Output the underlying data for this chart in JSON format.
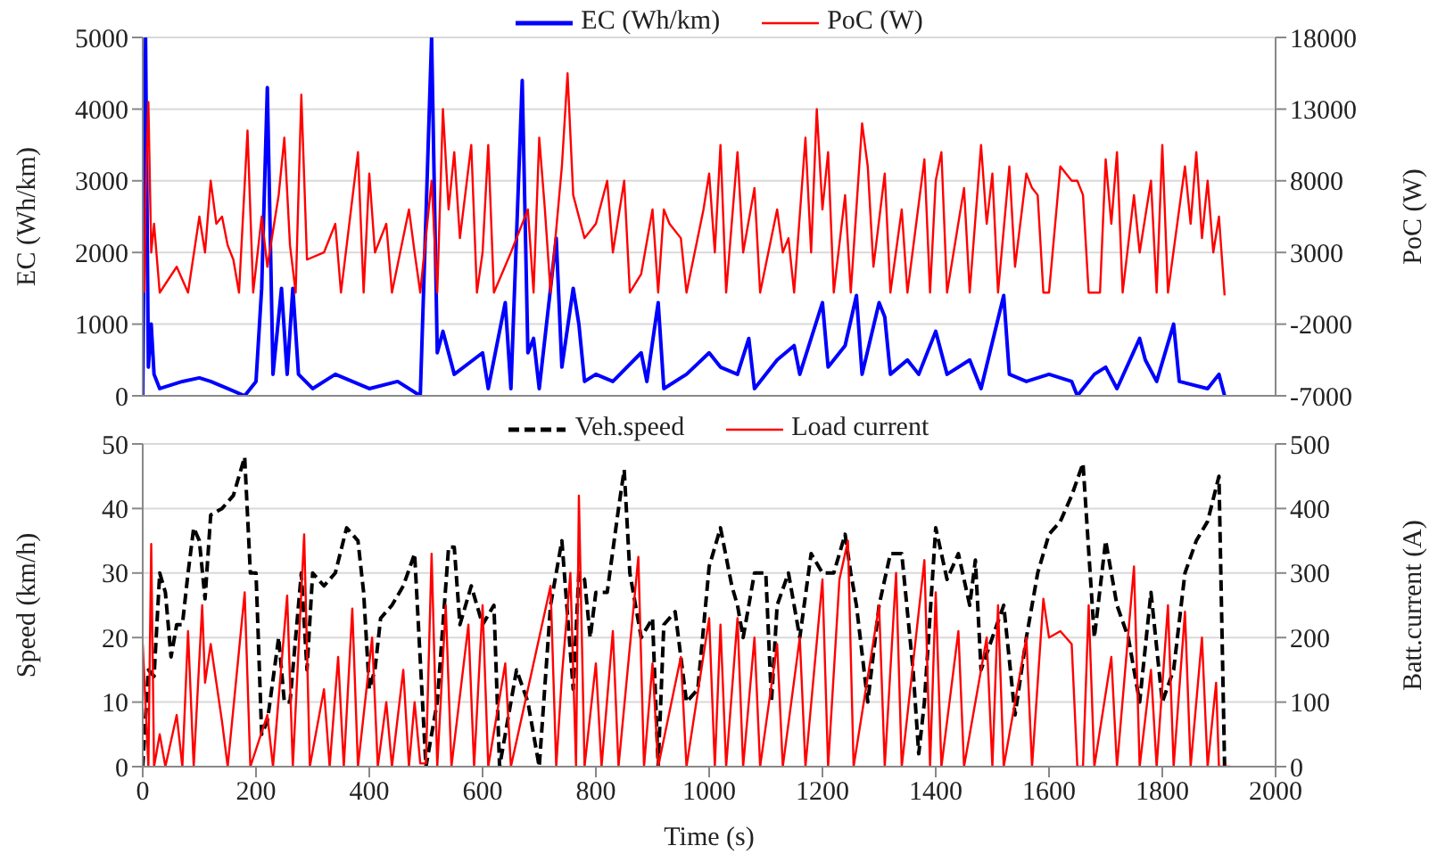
{
  "chart_data": [
    {
      "type": "line",
      "ylabel": "EC (Wh/km)",
      "y2label": "PoC (W)",
      "xlim": [
        0,
        2000
      ],
      "xticks": [
        0,
        200,
        400,
        600,
        800,
        1000,
        1200,
        1400,
        1600,
        1800,
        2000
      ],
      "ylim": [
        0,
        5000
      ],
      "yticks": [
        0,
        1000,
        2000,
        3000,
        4000,
        5000
      ],
      "y2lim": [
        -7000,
        18000
      ],
      "y2ticks": [
        -7000,
        -2000,
        3000,
        8000,
        13000,
        18000
      ],
      "grid": "y",
      "legend": "top",
      "tick_labels": "y",
      "series": [
        {
          "name": "EC (Wh/km)",
          "color": "#0000ff",
          "x": [
            0,
            5,
            10,
            15,
            20,
            30,
            50,
            70,
            100,
            120,
            150,
            180,
            200,
            210,
            220,
            230,
            245,
            255,
            265,
            275,
            300,
            340,
            400,
            450,
            490,
            510,
            520,
            530,
            550,
            600,
            610,
            640,
            650,
            670,
            680,
            690,
            700,
            720,
            730,
            740,
            760,
            770,
            780,
            800,
            830,
            880,
            890,
            910,
            920,
            960,
            1000,
            1020,
            1050,
            1070,
            1080,
            1120,
            1150,
            1160,
            1200,
            1210,
            1240,
            1260,
            1270,
            1300,
            1310,
            1320,
            1350,
            1370,
            1400,
            1420,
            1460,
            1480,
            1520,
            1530,
            1560,
            1600,
            1640,
            1650,
            1680,
            1700,
            1720,
            1760,
            1770,
            1790,
            1820,
            1830,
            1880,
            1900,
            1910
          ],
          "values": [
            0,
            5000,
            400,
            1000,
            300,
            100,
            150,
            200,
            250,
            200,
            100,
            0,
            200,
            1500,
            4300,
            300,
            1500,
            300,
            1500,
            300,
            100,
            300,
            100,
            200,
            0,
            5000,
            600,
            900,
            300,
            600,
            100,
            1300,
            100,
            4400,
            600,
            800,
            100,
            1500,
            2200,
            400,
            1500,
            1000,
            200,
            300,
            200,
            600,
            200,
            1300,
            100,
            300,
            600,
            400,
            300,
            800,
            100,
            500,
            700,
            300,
            1300,
            400,
            700,
            1400,
            300,
            1300,
            1100,
            300,
            500,
            300,
            900,
            300,
            500,
            100,
            1400,
            300,
            200,
            300,
            200,
            0,
            300,
            400,
            100,
            800,
            500,
            200,
            1000,
            200,
            100,
            300,
            0
          ]
        },
        {
          "name": "PoC (W)",
          "color": "#ff0000",
          "axis": "y2",
          "x": [
            3,
            5,
            10,
            15,
            20,
            30,
            60,
            80,
            100,
            110,
            120,
            130,
            140,
            150,
            160,
            170,
            185,
            195,
            210,
            220,
            240,
            250,
            260,
            270,
            280,
            290,
            320,
            340,
            350,
            380,
            390,
            400,
            410,
            430,
            440,
            470,
            480,
            490,
            510,
            520,
            530,
            540,
            550,
            560,
            580,
            590,
            600,
            610,
            620,
            650,
            660,
            680,
            690,
            700,
            710,
            720,
            740,
            750,
            760,
            780,
            800,
            820,
            830,
            850,
            860,
            880,
            900,
            910,
            920,
            930,
            950,
            960,
            990,
            1000,
            1010,
            1020,
            1030,
            1050,
            1060,
            1080,
            1090,
            1120,
            1130,
            1140,
            1150,
            1170,
            1180,
            1190,
            1200,
            1210,
            1220,
            1240,
            1250,
            1270,
            1280,
            1290,
            1310,
            1320,
            1340,
            1350,
            1380,
            1390,
            1400,
            1410,
            1420,
            1450,
            1460,
            1480,
            1490,
            1500,
            1510,
            1530,
            1540,
            1560,
            1570,
            1580,
            1590,
            1600,
            1620,
            1640,
            1650,
            1660,
            1670,
            1690,
            1700,
            1710,
            1720,
            1730,
            1750,
            1760,
            1780,
            1790,
            1800,
            1810,
            1840,
            1850,
            1860,
            1870,
            1880,
            1890,
            1900,
            1910
          ],
          "values": [
            200,
            7000,
            13500,
            3000,
            5000,
            200,
            2000,
            200,
            5500,
            3000,
            8000,
            5000,
            5500,
            3500,
            2500,
            200,
            11500,
            200,
            5500,
            2000,
            7000,
            11000,
            3500,
            200,
            14000,
            2500,
            3000,
            5000,
            200,
            10000,
            200,
            8500,
            3000,
            5000,
            200,
            6000,
            3000,
            200,
            8000,
            200,
            13000,
            6000,
            10000,
            4000,
            10500,
            200,
            3000,
            10500,
            200,
            3000,
            4000,
            6000,
            200,
            11000,
            6000,
            200,
            9000,
            15500,
            7000,
            4000,
            5000,
            8000,
            3000,
            8000,
            200,
            1500,
            6000,
            200,
            6000,
            5000,
            4000,
            200,
            6000,
            8500,
            3000,
            10500,
            200,
            10000,
            3000,
            7500,
            200,
            6000,
            3000,
            4000,
            200,
            11000,
            3000,
            13000,
            6000,
            10000,
            200,
            7000,
            200,
            12000,
            9000,
            2000,
            8500,
            200,
            6000,
            200,
            9500,
            200,
            8000,
            10000,
            200,
            7500,
            200,
            10500,
            5000,
            8500,
            200,
            9000,
            2000,
            8500,
            7500,
            7000,
            200,
            200,
            9000,
            8000,
            8000,
            7000,
            200,
            200,
            9500,
            5000,
            10000,
            200,
            7000,
            3000,
            8000,
            200,
            10500,
            200,
            9000,
            5000,
            10000,
            4000,
            8000,
            3000,
            5500,
            0
          ]
        }
      ]
    },
    {
      "type": "line",
      "xlabel": "Time (s)",
      "ylabel": "Speed (km/h)",
      "y2label": "Batt.current (A)",
      "xlim": [
        0,
        2000
      ],
      "xticks": [
        0,
        200,
        400,
        600,
        800,
        1000,
        1200,
        1400,
        1600,
        1800,
        2000
      ],
      "ylim": [
        0,
        50
      ],
      "yticks": [
        0,
        10,
        20,
        30,
        40,
        50
      ],
      "y2lim": [
        0,
        500
      ],
      "y2ticks": [
        0,
        100,
        200,
        300,
        400,
        500
      ],
      "grid": "y",
      "legend": "top",
      "series": [
        {
          "name": "Veh.speed",
          "color": "#000000",
          "line_style": "dashed",
          "x": [
            0,
            10,
            20,
            30,
            40,
            50,
            60,
            70,
            80,
            90,
            100,
            110,
            120,
            140,
            160,
            180,
            190,
            200,
            210,
            220,
            240,
            250,
            260,
            270,
            280,
            290,
            300,
            320,
            340,
            360,
            380,
            390,
            400,
            410,
            420,
            440,
            460,
            480,
            500,
            520,
            540,
            550,
            560,
            580,
            600,
            620,
            630,
            640,
            660,
            680,
            700,
            720,
            740,
            760,
            770,
            780,
            790,
            800,
            820,
            840,
            850,
            860,
            880,
            900,
            910,
            920,
            940,
            960,
            980,
            1000,
            1020,
            1040,
            1050,
            1060,
            1080,
            1100,
            1110,
            1120,
            1140,
            1160,
            1180,
            1200,
            1220,
            1240,
            1250,
            1260,
            1280,
            1300,
            1320,
            1340,
            1360,
            1370,
            1380,
            1400,
            1420,
            1440,
            1460,
            1470,
            1480,
            1500,
            1520,
            1540,
            1560,
            1580,
            1600,
            1620,
            1640,
            1660,
            1680,
            1700,
            1720,
            1740,
            1760,
            1780,
            1800,
            1820,
            1840,
            1860,
            1880,
            1900,
            1910,
            1920
          ],
          "values": [
            0,
            15,
            14,
            30,
            27,
            17,
            22,
            22,
            30,
            37,
            35,
            26,
            39,
            40,
            42,
            48,
            30,
            30,
            5,
            7,
            20,
            10,
            10,
            20,
            30,
            15,
            30,
            28,
            30,
            37,
            35,
            27,
            12,
            15,
            23,
            25,
            28,
            33,
            0,
            10,
            34,
            34,
            22,
            28,
            22,
            25,
            0,
            5,
            15,
            10,
            0,
            25,
            35,
            12,
            30,
            29,
            20,
            27,
            27,
            40,
            46,
            30,
            20,
            23,
            0,
            22,
            24,
            10,
            12,
            31,
            37,
            28,
            25,
            20,
            30,
            30,
            10,
            25,
            30,
            20,
            33,
            30,
            30,
            36,
            30,
            25,
            10,
            25,
            33,
            33,
            15,
            2,
            10,
            37,
            29,
            33,
            25,
            32,
            15,
            20,
            25,
            8,
            20,
            30,
            36,
            38,
            42,
            47,
            20,
            35,
            25,
            20,
            10,
            27,
            10,
            15,
            30,
            35,
            38,
            45,
            0,
            0
          ]
        },
        {
          "name": "Load current",
          "color": "#ff0000",
          "axis": "y2",
          "x": [
            0,
            10,
            15,
            20,
            30,
            40,
            60,
            70,
            80,
            90,
            105,
            110,
            120,
            130,
            140,
            150,
            180,
            190,
            220,
            230,
            255,
            265,
            285,
            295,
            320,
            330,
            345,
            355,
            370,
            380,
            405,
            415,
            430,
            440,
            460,
            470,
            480,
            490,
            500,
            510,
            520,
            535,
            545,
            575,
            585,
            600,
            610,
            640,
            650,
            720,
            730,
            740,
            755,
            765,
            770,
            780,
            800,
            810,
            830,
            840,
            875,
            885,
            900,
            910,
            950,
            960,
            1000,
            1010,
            1020,
            1030,
            1050,
            1060,
            1080,
            1090,
            1120,
            1130,
            1160,
            1170,
            1200,
            1210,
            1230,
            1245,
            1255,
            1300,
            1310,
            1330,
            1340,
            1380,
            1390,
            1400,
            1410,
            1440,
            1450,
            1490,
            1500,
            1510,
            1520,
            1560,
            1570,
            1590,
            1600,
            1620,
            1640,
            1650,
            1660,
            1670,
            1680,
            1710,
            1720,
            1750,
            1760,
            1780,
            1790,
            1810,
            1820,
            1840,
            1850,
            1870,
            1880,
            1895,
            1900,
            1920
          ],
          "values": [
            190,
            0,
            345,
            0,
            50,
            0,
            80,
            0,
            210,
            0,
            250,
            130,
            190,
            130,
            70,
            0,
            270,
            0,
            80,
            0,
            265,
            0,
            360,
            0,
            120,
            0,
            170,
            0,
            245,
            0,
            200,
            0,
            100,
            0,
            150,
            0,
            100,
            5,
            5,
            330,
            0,
            250,
            0,
            220,
            0,
            250,
            0,
            160,
            0,
            280,
            0,
            140,
            300,
            0,
            420,
            0,
            160,
            0,
            210,
            0,
            325,
            0,
            160,
            0,
            170,
            0,
            230,
            0,
            220,
            0,
            230,
            0,
            200,
            0,
            190,
            0,
            200,
            0,
            290,
            0,
            290,
            350,
            0,
            250,
            0,
            300,
            0,
            320,
            0,
            270,
            0,
            210,
            0,
            200,
            0,
            250,
            0,
            200,
            0,
            260,
            200,
            210,
            190,
            0,
            0,
            250,
            0,
            170,
            0,
            310,
            0,
            150,
            0,
            250,
            0,
            240,
            0,
            200,
            0,
            130,
            0,
            0
          ]
        }
      ]
    }
  ]
}
